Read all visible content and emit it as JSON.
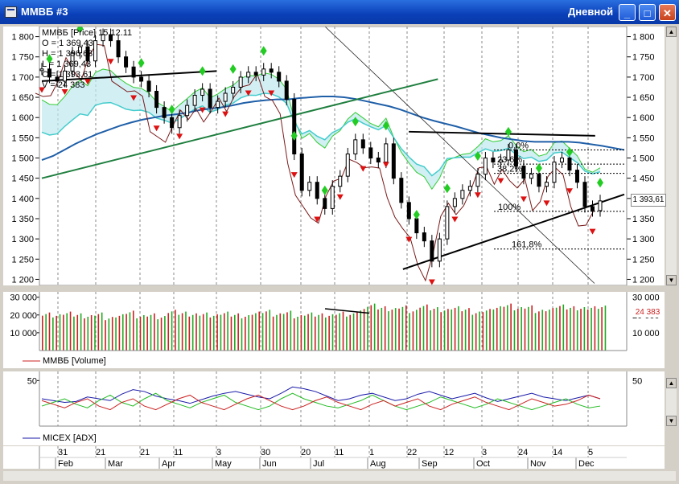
{
  "window": {
    "title": "ММВБ #3",
    "mode_label": "Дневной"
  },
  "colors": {
    "up": "#000000",
    "down": "#000000",
    "vol_up": "#22aa22",
    "vol_down": "#cc2222",
    "adx": "#1a1aaa",
    "pdi": "#22bb22",
    "mdi": "#cc2222",
    "support": "#1f7f3f",
    "ma": "#1f5fa8"
  },
  "legend": {
    "series_name": "ММВБ [Price] 15.12.11",
    "values": [
      {
        "label": "O = 1 369,43"
      },
      {
        "label": "H = 1 396,63"
      },
      {
        "label": "L = 1 369,43"
      },
      {
        "label": "C = 1 393,61"
      },
      {
        "label": "V = 24 383"
      }
    ]
  },
  "price_panel": {
    "y_ticks": [
      "1 800",
      "1 750",
      "1 700",
      "1 650",
      "1 600",
      "1 550",
      "1 500",
      "1 450",
      "1 400",
      "1 350",
      "1 300",
      "1 250",
      "1 200"
    ],
    "last_value_label": "1 393,61",
    "fib_labels": [
      "0,0%",
      "23,6%",
      "38,2%",
      "100%",
      "161,8%"
    ]
  },
  "volume_panel": {
    "legend_label": "ММВБ [Volume]",
    "y_ticks": [
      "30 000",
      "20 000",
      "10 000"
    ],
    "last_value_label": "24 383"
  },
  "adx_panel": {
    "legend_label": "MICEX [ADX]",
    "y_ticks": [
      "50"
    ]
  },
  "time_axis": {
    "day_labels": [
      "31",
      "21",
      "21",
      "11",
      "3",
      "30",
      "20",
      "11",
      "1",
      "22",
      "12",
      "3",
      "24",
      "14",
      "5"
    ],
    "month_labels": [
      "Feb",
      "Mar",
      "Apr",
      "May",
      "Jun",
      "Jul",
      "Aug",
      "Sep",
      "Oct",
      "Nov",
      "Dec"
    ]
  },
  "chart_data": {
    "type": "line",
    "title": "",
    "price_axis": {
      "ylim": [
        1185,
        1825
      ]
    },
    "price_close": [
      1720,
      1700,
      1690,
      1715,
      1760,
      1775,
      1740,
      1790,
      1805,
      1790,
      1750,
      1725,
      1700,
      1690,
      1665,
      1625,
      1600,
      1575,
      1605,
      1630,
      1655,
      1670,
      1625,
      1640,
      1660,
      1675,
      1700,
      1712,
      1705,
      1720,
      1712,
      1690,
      1645,
      1510,
      1420,
      1440,
      1400,
      1375,
      1430,
      1455,
      1510,
      1545,
      1525,
      1500,
      1490,
      1535,
      1450,
      1390,
      1350,
      1315,
      1295,
      1245,
      1300,
      1380,
      1400,
      1420,
      1430,
      1460,
      1500,
      1490,
      1495,
      1520,
      1480,
      1450,
      1460,
      1430,
      1440,
      1490,
      1500,
      1470,
      1440,
      1380,
      1370,
      1394
    ],
    "ma_line": [
      1495,
      1505,
      1520,
      1535,
      1548,
      1560,
      1570,
      1580,
      1588,
      1595,
      1600,
      1605,
      1608,
      1612,
      1618,
      1622,
      1625,
      1630,
      1636,
      1640,
      1643,
      1645,
      1645,
      1648,
      1650,
      1652,
      1652,
      1650,
      1646,
      1640,
      1634,
      1628,
      1620,
      1610,
      1600,
      1592,
      1585,
      1578,
      1570,
      1562,
      1556,
      1550,
      1546,
      1542,
      1540,
      1540,
      1540,
      1540,
      1538,
      1534,
      1530,
      1525,
      1520
    ],
    "trendlines": [
      {
        "from": [
          0,
          1690
        ],
        "to": [
          30,
          1715
        ]
      },
      {
        "from": [
          0,
          1450
        ],
        "to": [
          68,
          1695
        ]
      },
      {
        "from": [
          63,
          1565
        ],
        "to": [
          95,
          1555
        ]
      },
      {
        "from": [
          62,
          1225
        ],
        "to": [
          100,
          1410
        ]
      }
    ],
    "volume": [
      20500,
      19500,
      21000,
      20000,
      19000,
      20500,
      18000,
      19500,
      21500,
      19000,
      20000,
      18500,
      22000,
      21000,
      20000,
      20500,
      19500,
      21000,
      20000,
      19000,
      21000,
      22000,
      20000,
      21500,
      19000,
      20500,
      20000,
      19500,
      21000,
      20000,
      22500,
      25500,
      24000,
      23000,
      24500,
      22000,
      25000,
      23500,
      22500,
      24000,
      23000,
      21000,
      22500,
      24000,
      25500,
      23500,
      24500,
      22000,
      23000,
      25000,
      24000,
      23500,
      24000,
      24383
    ],
    "volume_ylim": [
      0,
      33000
    ],
    "adx": [
      30,
      28,
      26,
      27,
      32,
      30,
      28,
      35,
      40,
      38,
      33,
      30,
      28,
      25,
      29,
      33,
      36,
      38,
      35,
      32,
      30,
      36,
      43,
      41,
      38,
      33,
      28,
      30,
      34,
      36,
      32,
      28,
      30,
      35,
      38,
      34,
      30,
      33,
      36,
      31,
      27,
      30,
      33,
      36,
      32,
      30,
      28,
      31,
      34,
      30
    ],
    "pdi": [
      22,
      26,
      30,
      24,
      20,
      28,
      34,
      26,
      22,
      30,
      36,
      28,
      24,
      20,
      26,
      30,
      34,
      26,
      22,
      18,
      22,
      30,
      36,
      30,
      26,
      22,
      20,
      24,
      28,
      34,
      28,
      22,
      18,
      22,
      26,
      32,
      28,
      24,
      20,
      24,
      30,
      26,
      22,
      18,
      22,
      26,
      30,
      24,
      20,
      22
    ],
    "mdi": [
      28,
      24,
      20,
      26,
      30,
      22,
      18,
      26,
      30,
      22,
      18,
      24,
      30,
      34,
      26,
      22,
      18,
      24,
      30,
      34,
      28,
      22,
      18,
      22,
      28,
      32,
      26,
      22,
      18,
      24,
      28,
      22,
      26,
      30,
      22,
      18,
      24,
      28,
      32,
      26,
      22,
      18,
      24,
      30,
      26,
      22,
      24,
      28,
      34,
      30
    ],
    "adx_ylim": [
      0,
      60
    ]
  }
}
